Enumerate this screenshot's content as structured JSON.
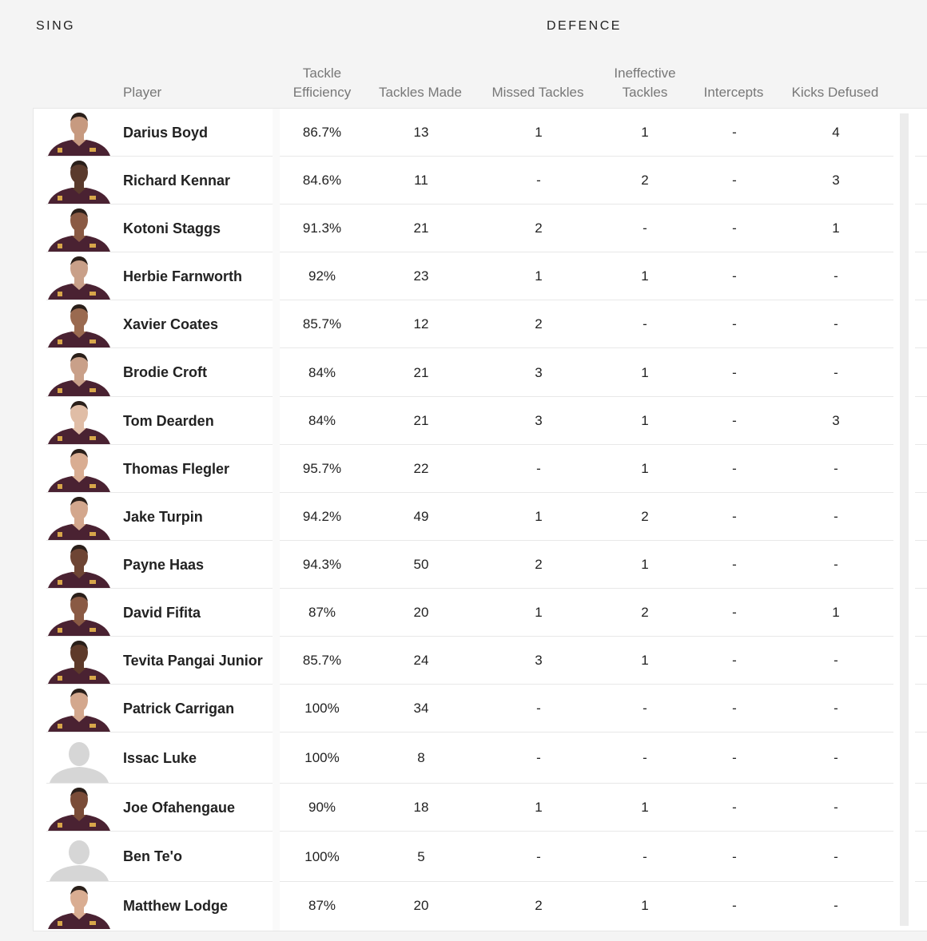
{
  "sections": {
    "left": "SING",
    "right": "DEFENCE"
  },
  "columns": {
    "player": "Player",
    "tackle_efficiency": [
      "Tackle",
      "Efficiency"
    ],
    "tackles_made": "Tackles Made",
    "missed_tackles": "Missed Tackles",
    "ineffective_tackles": [
      "Ineffective",
      "Tackles"
    ],
    "intercepts": "Intercepts",
    "kicks_defused": "Kicks Defused"
  },
  "colors": {
    "jersey": "#4a2232",
    "skin": "#b08068",
    "placeholder": "#d6d6d6"
  },
  "rows": [
    {
      "name": "Darius Boyd",
      "eff": "86.7%",
      "made": "13",
      "missed": "1",
      "ineff": "1",
      "int": "-",
      "kicks": "4",
      "photo": "player-photo",
      "skin": "#c79a80"
    },
    {
      "name": "Richard Kennar",
      "eff": "84.6%",
      "made": "11",
      "missed": "-",
      "ineff": "2",
      "int": "-",
      "kicks": "3",
      "photo": "player-photo",
      "skin": "#5a3a2c"
    },
    {
      "name": "Kotoni Staggs",
      "eff": "91.3%",
      "made": "21",
      "missed": "2",
      "ineff": "-",
      "int": "-",
      "kicks": "1",
      "photo": "player-photo",
      "skin": "#8a5a44"
    },
    {
      "name": "Herbie Farnworth",
      "eff": "92%",
      "made": "23",
      "missed": "1",
      "ineff": "1",
      "int": "-",
      "kicks": "-",
      "photo": "player-photo",
      "skin": "#c9a089"
    },
    {
      "name": "Xavier Coates",
      "eff": "85.7%",
      "made": "12",
      "missed": "2",
      "ineff": "-",
      "int": "-",
      "kicks": "-",
      "photo": "player-photo",
      "skin": "#9a6a50"
    },
    {
      "name": "Brodie Croft",
      "eff": "84%",
      "made": "21",
      "missed": "3",
      "ineff": "1",
      "int": "-",
      "kicks": "-",
      "photo": "player-photo",
      "skin": "#c9a089"
    },
    {
      "name": "Tom Dearden",
      "eff": "84%",
      "made": "21",
      "missed": "3",
      "ineff": "1",
      "int": "-",
      "kicks": "3",
      "photo": "player-photo",
      "skin": "#e0bda6"
    },
    {
      "name": "Thomas Flegler",
      "eff": "95.7%",
      "made": "22",
      "missed": "-",
      "ineff": "1",
      "int": "-",
      "kicks": "-",
      "photo": "player-photo",
      "skin": "#d9ad92"
    },
    {
      "name": "Jake Turpin",
      "eff": "94.2%",
      "made": "49",
      "missed": "1",
      "ineff": "2",
      "int": "-",
      "kicks": "-",
      "photo": "player-photo",
      "skin": "#d3a78d"
    },
    {
      "name": "Payne Haas",
      "eff": "94.3%",
      "made": "50",
      "missed": "2",
      "ineff": "1",
      "int": "-",
      "kicks": "-",
      "photo": "player-photo",
      "skin": "#6e4534"
    },
    {
      "name": "David Fifita",
      "eff": "87%",
      "made": "20",
      "missed": "1",
      "ineff": "2",
      "int": "-",
      "kicks": "1",
      "photo": "player-photo",
      "skin": "#8a5a44"
    },
    {
      "name": "Tevita Pangai Junior",
      "eff": "85.7%",
      "made": "24",
      "missed": "3",
      "ineff": "1",
      "int": "-",
      "kicks": "-",
      "photo": "player-photo",
      "skin": "#5e3a2a"
    },
    {
      "name": "Patrick Carrigan",
      "eff": "100%",
      "made": "34",
      "missed": "-",
      "ineff": "-",
      "int": "-",
      "kicks": "-",
      "photo": "player-photo",
      "skin": "#d3a78d"
    },
    {
      "name": "Issac Luke",
      "eff": "100%",
      "made": "8",
      "missed": "-",
      "ineff": "-",
      "int": "-",
      "kicks": "-",
      "photo": "placeholder",
      "skin": ""
    },
    {
      "name": "Joe Ofahengaue",
      "eff": "90%",
      "made": "18",
      "missed": "1",
      "ineff": "1",
      "int": "-",
      "kicks": "-",
      "photo": "player-photo",
      "skin": "#7a4c38"
    },
    {
      "name": "Ben Te'o",
      "eff": "100%",
      "made": "5",
      "missed": "-",
      "ineff": "-",
      "int": "-",
      "kicks": "-",
      "photo": "placeholder",
      "skin": ""
    },
    {
      "name": "Matthew Lodge",
      "eff": "87%",
      "made": "20",
      "missed": "2",
      "ineff": "1",
      "int": "-",
      "kicks": "-",
      "photo": "player-photo",
      "skin": "#d9ad92"
    }
  ]
}
